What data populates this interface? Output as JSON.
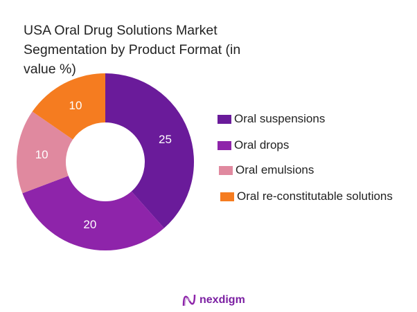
{
  "chart_data": {
    "type": "pie",
    "variant": "donut",
    "title": "USA Oral Drug Solutions Market Segmentation by Product Format (in value %)",
    "categories": [
      "Oral suspensions",
      "Oral drops",
      "Oral emulsions",
      "Oral re-constitutable solutions"
    ],
    "values": [
      25,
      20,
      10,
      10
    ],
    "data_labels": [
      "25",
      "20",
      "10",
      "10"
    ],
    "colors": [
      "#6a1b9a",
      "#8e24aa",
      "#e0899f",
      "#f57c20"
    ],
    "legend_position": "right"
  },
  "logo": {
    "text": "nexdigm"
  }
}
